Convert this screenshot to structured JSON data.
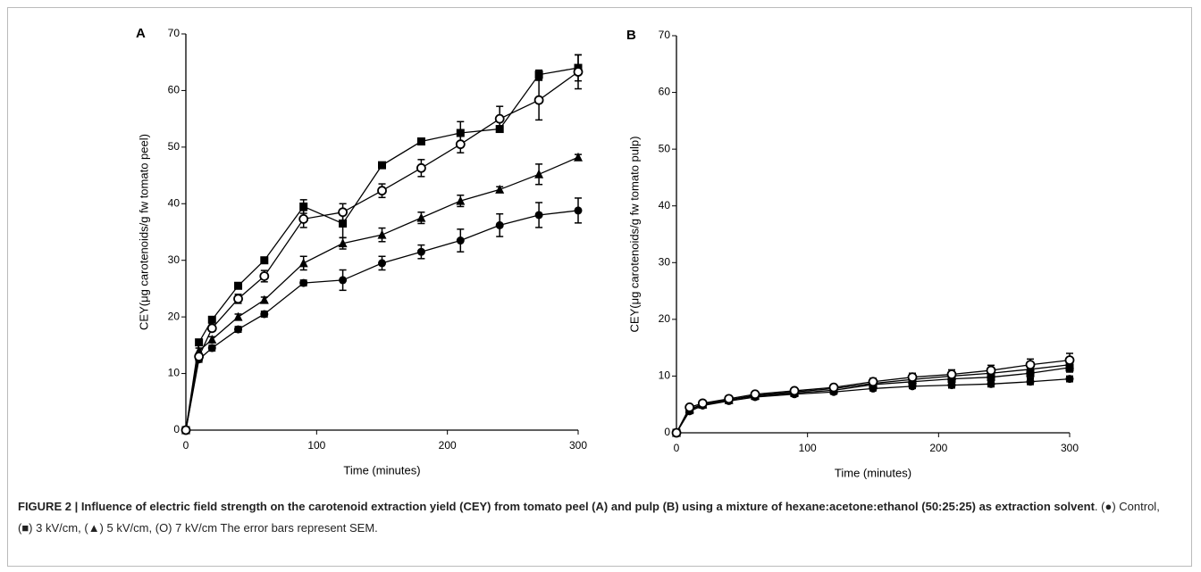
{
  "chart_data": [
    {
      "type": "line",
      "panel": "A",
      "xlabel": "Time (minutes)",
      "ylabel": "CEY(μg carotenoids/g fw tomato peel)",
      "x": [
        0,
        10,
        20,
        40,
        60,
        90,
        120,
        150,
        180,
        210,
        240,
        270,
        300
      ],
      "xlim": [
        0,
        300
      ],
      "xticks": [
        0,
        100,
        200,
        300
      ],
      "ylim": [
        0,
        70
      ],
      "yticks": [
        0,
        10,
        20,
        30,
        40,
        50,
        60,
        70
      ],
      "series": [
        {
          "name": "Control",
          "color": "#000000",
          "marker": "circle",
          "values": [
            0,
            12.5,
            14.5,
            17.8,
            20.5,
            26,
            26.5,
            29.5,
            31.5,
            33.5,
            36.2,
            38,
            38.8
          ],
          "error": [
            0,
            0.5,
            0.5,
            0.5,
            0.5,
            0.5,
            1.8,
            1.2,
            1.2,
            2,
            2,
            2.2,
            2.2
          ]
        },
        {
          "name": "3 kV/cm",
          "color": "#000000",
          "marker": "square",
          "values": [
            0,
            15.5,
            19.5,
            25.5,
            30,
            39.5,
            36.5,
            46.8,
            51,
            52.5,
            53.2,
            62.8,
            64
          ],
          "error": [
            0,
            0.5,
            0.5,
            0.5,
            0.5,
            1.2,
            2.5,
            0.5,
            0.5,
            2,
            0.5,
            0.8,
            2.3
          ]
        },
        {
          "name": "5 kV/cm",
          "color": "#000000",
          "marker": "triangle",
          "values": [
            0,
            14,
            16,
            20,
            23,
            29.5,
            33,
            34.5,
            37.5,
            40.5,
            42.5,
            45.2,
            48.2
          ],
          "error": [
            0,
            0.5,
            0.5,
            0.5,
            0.5,
            1.2,
            1,
            1.2,
            1,
            1,
            0.5,
            1.8,
            0.5
          ]
        },
        {
          "name": "7 kV/cm",
          "color": "#000000",
          "marker": "circle-open",
          "values": [
            0,
            13,
            18,
            23.2,
            27.2,
            37.3,
            38.5,
            42.3,
            46.3,
            50.5,
            55,
            58.3,
            63.3
          ],
          "error": [
            0,
            0.5,
            0.5,
            0.8,
            1,
            1.5,
            1.5,
            1.2,
            1.5,
            1.5,
            2.2,
            3.5,
            3
          ]
        }
      ]
    },
    {
      "type": "line",
      "panel": "B",
      "xlabel": "Time (minutes)",
      "ylabel": "CEY(μg carotenoids/g fw tomato pulp)",
      "x": [
        0,
        10,
        20,
        40,
        60,
        90,
        120,
        150,
        180,
        210,
        240,
        270,
        300
      ],
      "xlim": [
        0,
        300
      ],
      "xticks": [
        0,
        100,
        200,
        300
      ],
      "ylim": [
        0,
        70
      ],
      "yticks": [
        0,
        10,
        20,
        30,
        40,
        50,
        60,
        70
      ],
      "series": [
        {
          "name": "Control",
          "color": "#000000",
          "marker": "circle",
          "values": [
            0,
            3.8,
            4.8,
            5.6,
            6.3,
            6.8,
            7.2,
            7.8,
            8.2,
            8.4,
            8.6,
            9,
            9.5
          ],
          "error": [
            0,
            0.4,
            0.4,
            0.4,
            0.4,
            0.4,
            0.4,
            0.4,
            0.4,
            0.5,
            0.5,
            0.5,
            0.5
          ]
        },
        {
          "name": "3 kV/cm",
          "color": "#000000",
          "marker": "square",
          "values": [
            0,
            4,
            5,
            5.8,
            6.5,
            7,
            7.5,
            8.5,
            9,
            9.5,
            9.8,
            10.5,
            11.5
          ],
          "error": [
            0,
            0.4,
            0.4,
            0.4,
            0.4,
            0.4,
            0.4,
            0.5,
            0.5,
            0.6,
            0.6,
            0.8,
            0.8
          ]
        },
        {
          "name": "5 kV/cm",
          "color": "#000000",
          "marker": "triangle",
          "values": [
            0,
            4.2,
            5,
            5.8,
            6.6,
            7.2,
            7.8,
            8.7,
            9.4,
            10,
            10.5,
            11.2,
            12
          ],
          "error": [
            0,
            0.4,
            0.4,
            0.4,
            0.4,
            0.4,
            0.4,
            0.5,
            0.6,
            0.6,
            0.8,
            0.9,
            0.9
          ]
        },
        {
          "name": "7 kV/cm",
          "color": "#000000",
          "marker": "circle-open",
          "values": [
            0,
            4.5,
            5.2,
            6,
            6.8,
            7.4,
            8,
            9,
            9.8,
            10.3,
            11,
            12,
            12.8
          ],
          "error": [
            0,
            0.4,
            0.4,
            0.4,
            0.4,
            0.4,
            0.5,
            0.6,
            0.7,
            0.8,
            0.9,
            1,
            1.2
          ]
        }
      ]
    }
  ],
  "caption": {
    "title": "FIGURE 2 | Influence of electric field strength on the carotenoid extraction yield (CEY) from tomato peel (A) and pulp (B) using a mixture of hexane:acetone:ethanol (50:25:25) as extraction solvent",
    "symbols": [
      "(●)",
      "(■)",
      "(▲)",
      "(O)"
    ],
    "note": "The error bars represent SEM."
  }
}
